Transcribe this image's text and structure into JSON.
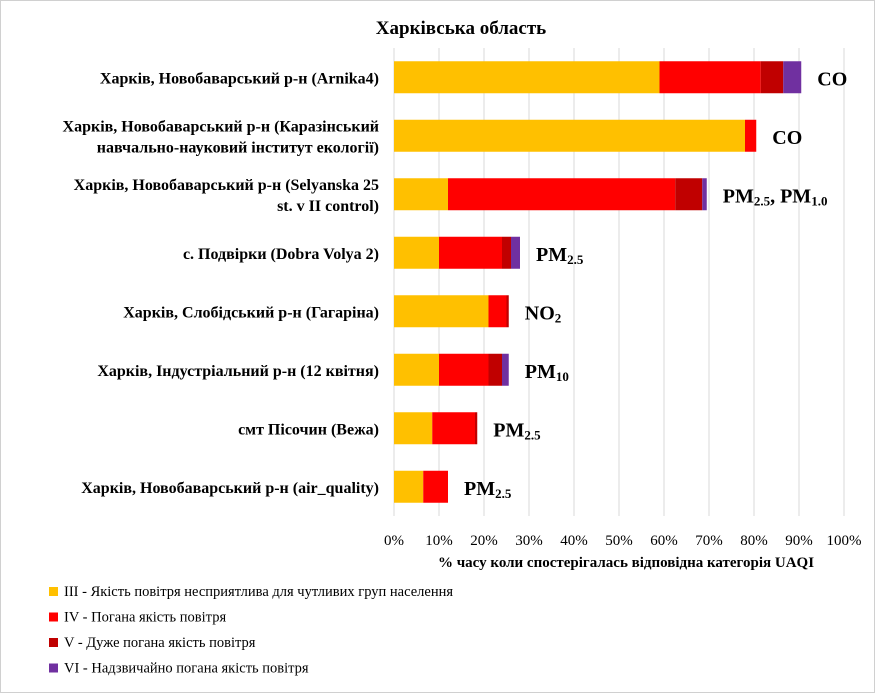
{
  "chart_data": {
    "type": "bar",
    "orientation": "horizontal",
    "stacked": true,
    "title": "Харківська  область",
    "xlabel": "% часу коли спостерігалась відповідна категорія UAQI",
    "xlim": [
      0,
      100
    ],
    "xticks": [
      "0%",
      "10%",
      "20%",
      "30%",
      "40%",
      "50%",
      "60%",
      "70%",
      "80%",
      "90%",
      "100%"
    ],
    "grid": "vertical",
    "legend_position": "bottom",
    "categories": [
      {
        "lines": [
          "Харків, Новобаварський р-н (Arnika4)"
        ],
        "pollutant": [
          {
            "t": "CO",
            "sub": false
          }
        ]
      },
      {
        "lines": [
          "Харків, Новобаварський р-н (Каразінський",
          "навчально-науковий інститут екології)"
        ],
        "pollutant": [
          {
            "t": "CO",
            "sub": false
          }
        ]
      },
      {
        "lines": [
          "Харків, Новобаварський р-н (Selyanska 25",
          "st. v II control)"
        ],
        "pollutant": [
          {
            "t": "PM",
            "sub": false
          },
          {
            "t": "2.5",
            "sub": true
          },
          {
            "t": ", PM",
            "sub": false
          },
          {
            "t": "1.0",
            "sub": true
          }
        ]
      },
      {
        "lines": [
          "с. Подвірки (Dobra Volya 2)"
        ],
        "pollutant": [
          {
            "t": "PM",
            "sub": false
          },
          {
            "t": "2.5",
            "sub": true
          }
        ]
      },
      {
        "lines": [
          "Харків, Слобідський р-н (Гагаріна)"
        ],
        "pollutant": [
          {
            "t": "NO",
            "sub": false
          },
          {
            "t": "2",
            "sub": true
          }
        ]
      },
      {
        "lines": [
          "Харків, Індустріальний р-н (12 квітня)"
        ],
        "pollutant": [
          {
            "t": "PM",
            "sub": false
          },
          {
            "t": "10",
            "sub": true
          }
        ]
      },
      {
        "lines": [
          "смт Пісочин (Вежа)"
        ],
        "pollutant": [
          {
            "t": "PM",
            "sub": false
          },
          {
            "t": "2.5",
            "sub": true
          }
        ]
      },
      {
        "lines": [
          "Харків, Новобаварський р-н (air_quality)"
        ],
        "pollutant": [
          {
            "t": "PM",
            "sub": false
          },
          {
            "t": "2.5",
            "sub": true
          }
        ]
      }
    ],
    "series": [
      {
        "name": "III - Якість повітря  несприятлива  для чутливих  груп  населення",
        "color": "#FFC000",
        "values": [
          59,
          78,
          12,
          10,
          21,
          10,
          8.5,
          6.5
        ]
      },
      {
        "name": "IV - Погана якість повітря",
        "color": "#FF0000",
        "values": [
          22.5,
          2.5,
          50.5,
          14,
          4,
          11,
          9.5,
          5.5
        ]
      },
      {
        "name": "V - Дуже погана  якість повітря",
        "color": "#C00000",
        "values": [
          5,
          0,
          6,
          2,
          0.5,
          3,
          0.5,
          0
        ]
      },
      {
        "name": "VI - Надзвичайно  погана якість повітря",
        "color": "#7030A0",
        "values": [
          4,
          0,
          1,
          2,
          0,
          1.5,
          0,
          0
        ]
      }
    ]
  }
}
